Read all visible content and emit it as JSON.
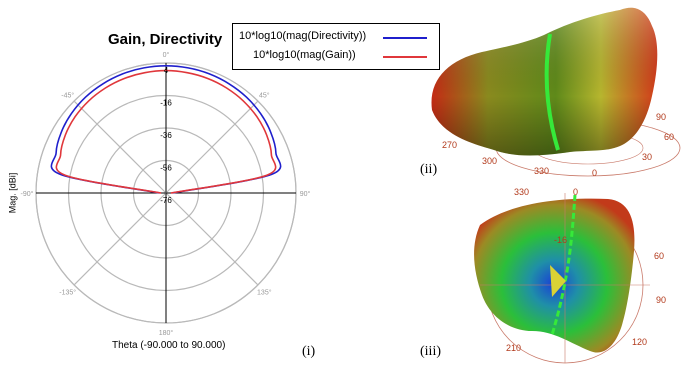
{
  "figure": {
    "labels": [
      "(i)",
      "(ii)",
      "(iii)"
    ]
  },
  "colors": {
    "directivity": "#1f1fcc",
    "gain": "#e0373b"
  },
  "chart_data": [
    {
      "type": "polar-line",
      "title": "Gain, Directivity",
      "xlabel": "Theta (-90.000 to 90.000)",
      "ylabel": "Mag. [dBi]",
      "radial_ticks": [
        "4",
        "-16",
        "-36",
        "-56",
        "-76"
      ],
      "radial_range": [
        -76,
        4
      ],
      "angle_labels": [
        "0°",
        "45°",
        "90°",
        "135°",
        "180°",
        "-135°",
        "-90°",
        "-45°"
      ],
      "legend": [
        "10*log10(mag(Directivity))",
        "10*log10(mag(Gain))"
      ],
      "legend_position": "top-right",
      "theta": [
        -90,
        -80,
        -70,
        -60,
        -50,
        -40,
        -30,
        -20,
        -10,
        0,
        10,
        20,
        30,
        40,
        50,
        60,
        70,
        80,
        90
      ],
      "series": [
        {
          "name": "10*log10(mag(Directivity))",
          "values": [
            -72,
            -10,
            -4,
            -1.5,
            0,
            1,
            1.6,
            2,
            2.2,
            2.3,
            2.2,
            2,
            1.6,
            1,
            0,
            -1.5,
            -4,
            -10,
            -72
          ]
        },
        {
          "name": "10*log10(mag(Gain))",
          "values": [
            -73,
            -13,
            -7,
            -4.5,
            -3,
            -2,
            -1.4,
            -1,
            -0.8,
            -0.7,
            -0.8,
            -1,
            -1.4,
            -2,
            -3,
            -4.5,
            -7,
            -13,
            -73
          ]
        }
      ]
    },
    {
      "type": "3d-surface",
      "azimuth_labels": [
        "90",
        "60",
        "30",
        "0",
        "330",
        "300",
        "270"
      ]
    },
    {
      "type": "3d-surface",
      "azimuth_labels": [
        "330",
        "0",
        "60",
        "90",
        "120",
        "210"
      ],
      "radial_labels": [
        "-16"
      ]
    }
  ]
}
